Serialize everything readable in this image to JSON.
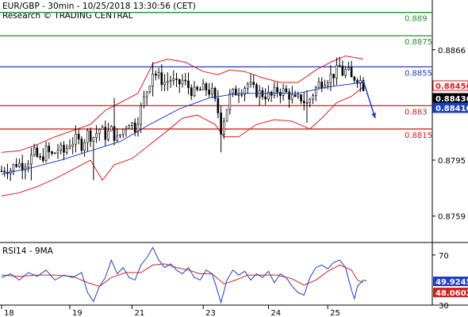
{
  "chart_data": {
    "type": "line",
    "subtype": "candlestick-with-bollinger-bands",
    "header": {
      "line1": "EUR/GBP - 30min - 10/25/2018 13:30:56 (CET)",
      "line2": "Research © TRADING CENTRAL"
    },
    "x_labels": [
      "18",
      "19",
      "21",
      "23",
      "24",
      "25"
    ],
    "price_axis": {
      "ylim": [
        0.8742,
        0.8898
      ],
      "tick_values": [
        0.8759,
        0.8795,
        0.8866
      ],
      "tick_labels": [
        "0.8759",
        "0.8795",
        "0.8866"
      ]
    },
    "levels": [
      {
        "value": 0.889,
        "label": "0.889",
        "color": "#2e8b2e",
        "kind": "resistance"
      },
      {
        "value": 0.8875,
        "label": "0.8875",
        "color": "#2e8b2e",
        "kind": "resistance"
      },
      {
        "value": 0.8855,
        "label": "0.8855",
        "color": "#1f3fbf",
        "kind": "pivot"
      },
      {
        "value": 0.883,
        "label": "0.883",
        "color": "#d42020",
        "kind": "support"
      },
      {
        "value": 0.8815,
        "label": "0.8815",
        "color": "#d42020",
        "kind": "support"
      }
    ],
    "price_boxes": [
      {
        "value": 0.88456,
        "label": "0.88456",
        "bg": "#ffffff",
        "fg": "#d42020",
        "border": "#d42020"
      },
      {
        "value": 0.88436,
        "label": "0.88436",
        "bg": "#000000",
        "fg": "#ffffff",
        "border": "#000000"
      },
      {
        "value": 0.8841,
        "label": "0.88410",
        "bg": "#1f3fbf",
        "fg": "#ffffff",
        "border": "#1f3fbf"
      }
    ],
    "close_path": [
      [
        0,
        0.8788
      ],
      [
        3,
        0.879
      ],
      [
        6,
        0.8789
      ],
      [
        10,
        0.8793
      ],
      [
        14,
        0.8792
      ],
      [
        18,
        0.8795
      ],
      [
        22,
        0.8799
      ],
      [
        26,
        0.8795
      ],
      [
        30,
        0.8801
      ],
      [
        34,
        0.8798
      ],
      [
        38,
        0.8802
      ],
      [
        42,
        0.88
      ],
      [
        46,
        0.8806
      ],
      [
        50,
        0.8808
      ],
      [
        54,
        0.8805
      ],
      [
        58,
        0.8812
      ],
      [
        62,
        0.881
      ],
      [
        66,
        0.8815
      ],
      [
        70,
        0.8811
      ],
      [
        74,
        0.8814
      ],
      [
        78,
        0.8808
      ],
      [
        82,
        0.8815
      ],
      [
        86,
        0.882
      ],
      [
        90,
        0.8816
      ],
      [
        94,
        0.8828
      ],
      [
        98,
        0.884
      ],
      [
        102,
        0.8852
      ],
      [
        106,
        0.8848
      ],
      [
        110,
        0.8845
      ],
      [
        114,
        0.8847
      ],
      [
        118,
        0.8843
      ],
      [
        122,
        0.8846
      ],
      [
        126,
        0.8842
      ],
      [
        130,
        0.8838
      ],
      [
        134,
        0.884
      ],
      [
        138,
        0.8841
      ],
      [
        142,
        0.8838
      ],
      [
        146,
        0.8826
      ],
      [
        148,
        0.8815
      ],
      [
        150,
        0.8822
      ],
      [
        154,
        0.8836
      ],
      [
        158,
        0.8839
      ],
      [
        162,
        0.8841
      ],
      [
        166,
        0.8844
      ],
      [
        170,
        0.884
      ],
      [
        174,
        0.8838
      ],
      [
        178,
        0.8837
      ],
      [
        182,
        0.8836
      ],
      [
        186,
        0.884
      ],
      [
        190,
        0.8839
      ],
      [
        194,
        0.8837
      ],
      [
        198,
        0.8833
      ],
      [
        202,
        0.8835
      ],
      [
        206,
        0.8831
      ],
      [
        210,
        0.8838
      ],
      [
        214,
        0.8844
      ],
      [
        218,
        0.8847
      ],
      [
        222,
        0.8849
      ],
      [
        226,
        0.8852
      ],
      [
        228,
        0.8855
      ],
      [
        230,
        0.8851
      ],
      [
        233,
        0.8853
      ],
      [
        236,
        0.8847
      ],
      [
        239,
        0.8849
      ],
      [
        242,
        0.8846
      ],
      [
        244,
        0.8843
      ]
    ],
    "candle_events": [
      {
        "t": 20,
        "high": 0.8803,
        "low": 0.8782
      },
      {
        "t": 62,
        "high": 0.8792,
        "low": 0.8782
      },
      {
        "t": 76,
        "high": 0.8835,
        "low": 0.8806
      },
      {
        "t": 102,
        "high": 0.8858,
        "low": 0.8836
      },
      {
        "t": 148,
        "high": 0.883,
        "low": 0.88
      },
      {
        "t": 206,
        "high": 0.884,
        "low": 0.8819
      },
      {
        "t": 229,
        "high": 0.8858,
        "low": 0.884
      }
    ],
    "ma_path": [
      [
        0,
        0.8786
      ],
      [
        20,
        0.879
      ],
      [
        40,
        0.8795
      ],
      [
        60,
        0.8801
      ],
      [
        80,
        0.8807
      ],
      [
        100,
        0.8818
      ],
      [
        120,
        0.8828
      ],
      [
        140,
        0.8835
      ],
      [
        160,
        0.8838
      ],
      [
        180,
        0.8838
      ],
      [
        200,
        0.8838
      ],
      [
        220,
        0.8842
      ],
      [
        244,
        0.8845
      ]
    ],
    "bb_upper": [
      [
        0,
        0.88
      ],
      [
        12,
        0.8801
      ],
      [
        24,
        0.8805
      ],
      [
        36,
        0.881
      ],
      [
        48,
        0.8814
      ],
      [
        60,
        0.8818
      ],
      [
        70,
        0.8827
      ],
      [
        80,
        0.8832
      ],
      [
        92,
        0.8838
      ],
      [
        102,
        0.8857
      ],
      [
        112,
        0.886
      ],
      [
        124,
        0.8858
      ],
      [
        136,
        0.8852
      ],
      [
        146,
        0.885
      ],
      [
        154,
        0.8853
      ],
      [
        164,
        0.8852
      ],
      [
        176,
        0.8848
      ],
      [
        188,
        0.8845
      ],
      [
        200,
        0.8845
      ],
      [
        212,
        0.8853
      ],
      [
        222,
        0.8858
      ],
      [
        232,
        0.8862
      ],
      [
        244,
        0.886
      ]
    ],
    "bb_lower": [
      [
        0,
        0.8772
      ],
      [
        12,
        0.8774
      ],
      [
        24,
        0.8778
      ],
      [
        36,
        0.8783
      ],
      [
        48,
        0.8789
      ],
      [
        60,
        0.8795
      ],
      [
        68,
        0.8782
      ],
      [
        76,
        0.8792
      ],
      [
        88,
        0.8796
      ],
      [
        100,
        0.8805
      ],
      [
        112,
        0.8814
      ],
      [
        122,
        0.8822
      ],
      [
        132,
        0.8824
      ],
      [
        144,
        0.8818
      ],
      [
        150,
        0.881
      ],
      [
        160,
        0.881
      ],
      [
        172,
        0.8818
      ],
      [
        184,
        0.8821
      ],
      [
        196,
        0.882
      ],
      [
        208,
        0.8815
      ],
      [
        216,
        0.8822
      ],
      [
        226,
        0.8832
      ],
      [
        236,
        0.8836
      ],
      [
        244,
        0.8842
      ]
    ],
    "forecast_arrow": {
      "from": [
        244,
        0.8846
      ],
      "to": [
        252,
        0.8822
      ],
      "color": "#1f3fbf"
    },
    "x_tick_positions": [
      0,
      46,
      88,
      136,
      180,
      220
    ],
    "x_range": [
      0,
      290
    ],
    "rsi": {
      "title": "RSI14 - 9MA",
      "ylim": [
        30,
        80
      ],
      "ticks": [
        30,
        70
      ],
      "tick_labels": [
        "30",
        "70"
      ],
      "value_labels": [
        {
          "value": 49.9245,
          "label": "49.9245",
          "bg": "#1f3fbf",
          "fg": "#ffffff"
        },
        {
          "value": 48.0602,
          "label": "48.0602",
          "bg": "#d42020",
          "fg": "#ffffff"
        }
      ],
      "rsi_series": [
        [
          0,
          52
        ],
        [
          6,
          55
        ],
        [
          12,
          50
        ],
        [
          18,
          56
        ],
        [
          24,
          53
        ],
        [
          30,
          58
        ],
        [
          36,
          50
        ],
        [
          42,
          54
        ],
        [
          48,
          52
        ],
        [
          54,
          56
        ],
        [
          58,
          40
        ],
        [
          62,
          33
        ],
        [
          66,
          45
        ],
        [
          70,
          52
        ],
        [
          74,
          66
        ],
        [
          78,
          55
        ],
        [
          82,
          60
        ],
        [
          86,
          52
        ],
        [
          90,
          50
        ],
        [
          94,
          62
        ],
        [
          98,
          68
        ],
        [
          102,
          76
        ],
        [
          106,
          66
        ],
        [
          110,
          60
        ],
        [
          114,
          63
        ],
        [
          118,
          58
        ],
        [
          122,
          55
        ],
        [
          126,
          60
        ],
        [
          130,
          52
        ],
        [
          134,
          50
        ],
        [
          138,
          58
        ],
        [
          142,
          55
        ],
        [
          146,
          40
        ],
        [
          148,
          32
        ],
        [
          152,
          50
        ],
        [
          156,
          58
        ],
        [
          160,
          54
        ],
        [
          164,
          57
        ],
        [
          168,
          50
        ],
        [
          172,
          55
        ],
        [
          176,
          52
        ],
        [
          180,
          57
        ],
        [
          184,
          48
        ],
        [
          188,
          55
        ],
        [
          192,
          52
        ],
        [
          196,
          45
        ],
        [
          200,
          40
        ],
        [
          204,
          38
        ],
        [
          208,
          52
        ],
        [
          212,
          60
        ],
        [
          216,
          62
        ],
        [
          220,
          59
        ],
        [
          224,
          64
        ],
        [
          228,
          66
        ],
        [
          232,
          60
        ],
        [
          236,
          42
        ],
        [
          238,
          35
        ],
        [
          240,
          45
        ],
        [
          244,
          50
        ]
      ],
      "ma_series": [
        [
          0,
          54
        ],
        [
          12,
          53
        ],
        [
          24,
          54
        ],
        [
          36,
          54
        ],
        [
          48,
          53
        ],
        [
          58,
          48
        ],
        [
          66,
          45
        ],
        [
          74,
          52
        ],
        [
          84,
          56
        ],
        [
          94,
          56
        ],
        [
          102,
          62
        ],
        [
          110,
          63
        ],
        [
          118,
          60
        ],
        [
          126,
          58
        ],
        [
          134,
          55
        ],
        [
          142,
          55
        ],
        [
          150,
          47
        ],
        [
          158,
          50
        ],
        [
          166,
          54
        ],
        [
          176,
          54
        ],
        [
          186,
          54
        ],
        [
          196,
          51
        ],
        [
          204,
          46
        ],
        [
          212,
          50
        ],
        [
          220,
          57
        ],
        [
          228,
          62
        ],
        [
          236,
          58
        ],
        [
          240,
          50
        ],
        [
          244,
          48
        ]
      ]
    },
    "colors": {
      "candle": "#000000",
      "ma": "#1f3fbf",
      "bollinger": "#d42020",
      "rsi_line": "#1f3fbf",
      "rsi_ma": "#d42020",
      "axis": "#000000"
    }
  }
}
